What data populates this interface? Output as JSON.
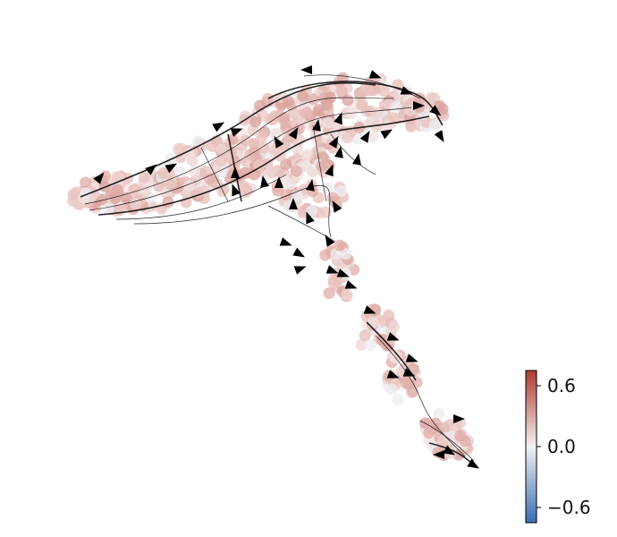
{
  "chart_data": {
    "type": "scatter",
    "title": "",
    "xlabel": "",
    "ylabel": "",
    "axes_visible": false,
    "grid": false,
    "overlay": "velocity-streamlines",
    "colorbar": {
      "placement": "bottom-right",
      "range": [
        -0.75,
        0.75
      ],
      "ticks": [
        0.6,
        0.0,
        -0.6
      ],
      "tick_labels": [
        "0.6",
        "0.0",
        "−0.6"
      ],
      "colors": [
        "#3b6db3",
        "#f2f2f2",
        "#b03a2e"
      ]
    },
    "point_color_typical": "#e2b4b0",
    "marker_color": "#000000"
  }
}
